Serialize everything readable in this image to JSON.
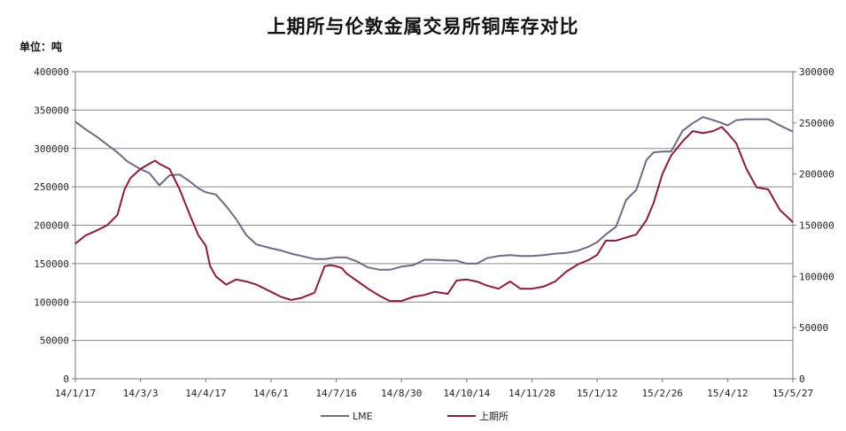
{
  "title": "上期所与伦敦金属交易所铜库存对比",
  "unit_label": "单位：吨",
  "chart_data": {
    "type": "line",
    "title": "上期所与伦敦金属交易所铜库存对比",
    "x_ticks": [
      "14/1/17",
      "14/3/3",
      "14/4/17",
      "14/6/1",
      "14/7/16",
      "14/8/30",
      "14/10/14",
      "14/11/28",
      "15/1/12",
      "15/2/26",
      "15/4/12",
      "15/5/27"
    ],
    "y_left": {
      "ylim": [
        0,
        400000
      ],
      "ticks": [
        "0",
        "50000",
        "100000",
        "150000",
        "200000",
        "250000",
        "300000",
        "350000",
        "400000"
      ]
    },
    "y_right": {
      "ylim": [
        0,
        300000
      ],
      "ticks": [
        "0",
        "50000",
        "100000",
        "150000",
        "200000",
        "250000",
        "300000"
      ]
    },
    "grid": true,
    "legend_position": "bottom",
    "series": [
      {
        "name": "LME",
        "axis": "left",
        "color": "#6e6a86",
        "x": [
          "14/1/17",
          "14/1/24",
          "14/2/1",
          "14/2/8",
          "14/2/15",
          "14/2/22",
          "14/3/3",
          "14/3/9",
          "14/3/16",
          "14/3/23",
          "14/3/30",
          "14/4/6",
          "14/4/12",
          "14/4/17",
          "14/4/24",
          "14/5/1",
          "14/5/8",
          "14/5/15",
          "14/5/22",
          "14/6/1",
          "14/6/8",
          "14/6/15",
          "14/6/22",
          "14/7/1",
          "14/7/8",
          "14/7/16",
          "14/7/23",
          "14/7/30",
          "14/8/7",
          "14/8/15",
          "14/8/22",
          "14/8/30",
          "14/9/7",
          "14/9/15",
          "14/9/22",
          "14/10/1",
          "14/10/7",
          "14/10/14",
          "14/10/21",
          "14/10/28",
          "14/11/5",
          "14/11/13",
          "14/11/20",
          "14/11/28",
          "14/12/6",
          "14/12/14",
          "14/12/22",
          "14/12/30",
          "15/1/6",
          "15/1/12",
          "15/1/18",
          "15/1/25",
          "15/2/1",
          "15/2/8",
          "15/2/15",
          "15/2/20",
          "15/2/26",
          "15/3/4",
          "15/3/12",
          "15/3/19",
          "15/3/26",
          "15/4/2",
          "15/4/8",
          "15/4/12",
          "15/4/18",
          "15/4/25",
          "15/5/2",
          "15/5/10",
          "15/5/18",
          "15/5/27"
        ],
        "values": [
          335000,
          325000,
          315000,
          305000,
          295000,
          283000,
          273000,
          268000,
          252000,
          265000,
          266000,
          257000,
          248000,
          243000,
          240000,
          225000,
          208000,
          187000,
          175000,
          170000,
          167000,
          163000,
          160000,
          156000,
          156000,
          158000,
          158000,
          153000,
          145000,
          142000,
          142000,
          146000,
          148000,
          155000,
          155000,
          154000,
          154000,
          150000,
          150000,
          157000,
          160000,
          161000,
          160000,
          160000,
          161000,
          163000,
          164000,
          167000,
          172000,
          178000,
          188000,
          198000,
          233000,
          246000,
          285000,
          295000,
          296000,
          296000,
          323000,
          333000,
          341000,
          337000,
          333000,
          330000,
          337000,
          338000,
          338000,
          338000,
          330000,
          322000
        ]
      },
      {
        "name": "上期所",
        "axis": "right",
        "color": "#8b1a3e",
        "x": [
          "14/1/17",
          "14/1/24",
          "14/2/1",
          "14/2/8",
          "14/2/15",
          "14/2/20",
          "14/2/24",
          "14/3/3",
          "14/3/9",
          "14/3/13",
          "14/3/16",
          "14/3/23",
          "14/3/30",
          "14/4/6",
          "14/4/12",
          "14/4/17",
          "14/4/20",
          "14/4/24",
          "14/5/1",
          "14/5/8",
          "14/5/15",
          "14/5/22",
          "14/6/1",
          "14/6/8",
          "14/6/15",
          "14/6/22",
          "14/7/1",
          "14/7/8",
          "14/7/12",
          "14/7/16",
          "14/7/20",
          "14/7/23",
          "14/7/30",
          "14/8/7",
          "14/8/15",
          "14/8/22",
          "14/8/30",
          "14/9/7",
          "14/9/15",
          "14/9/22",
          "14/10/1",
          "14/10/7",
          "14/10/14",
          "14/10/21",
          "14/10/28",
          "14/11/5",
          "14/11/13",
          "14/11/20",
          "14/11/28",
          "14/12/6",
          "14/12/14",
          "14/12/22",
          "14/12/30",
          "15/1/6",
          "15/1/12",
          "15/1/18",
          "15/1/25",
          "15/2/1",
          "15/2/8",
          "15/2/15",
          "15/2/20",
          "15/2/26",
          "15/3/4",
          "15/3/12",
          "15/3/19",
          "15/3/26",
          "15/4/2",
          "15/4/8",
          "15/4/12",
          "15/4/18",
          "15/4/25",
          "15/5/2",
          "15/5/10",
          "15/5/18",
          "15/5/27"
        ],
        "values": [
          132000,
          140000,
          145000,
          150000,
          160000,
          185000,
          196000,
          205000,
          210000,
          213000,
          210000,
          205000,
          185000,
          160000,
          140000,
          130000,
          110000,
          100000,
          92000,
          97000,
          95000,
          92000,
          85000,
          80000,
          77000,
          79000,
          84000,
          110000,
          111000,
          110000,
          108000,
          103000,
          96000,
          88000,
          81000,
          76000,
          76000,
          80000,
          82000,
          85000,
          83000,
          96000,
          97000,
          95000,
          91000,
          88000,
          95000,
          88000,
          88000,
          90000,
          95000,
          105000,
          112000,
          116000,
          121000,
          135000,
          135000,
          138000,
          141000,
          155000,
          172000,
          200000,
          218000,
          232000,
          242000,
          240000,
          242000,
          246000,
          240000,
          230000,
          205000,
          187000,
          185000,
          165000,
          153000
        ]
      }
    ]
  }
}
